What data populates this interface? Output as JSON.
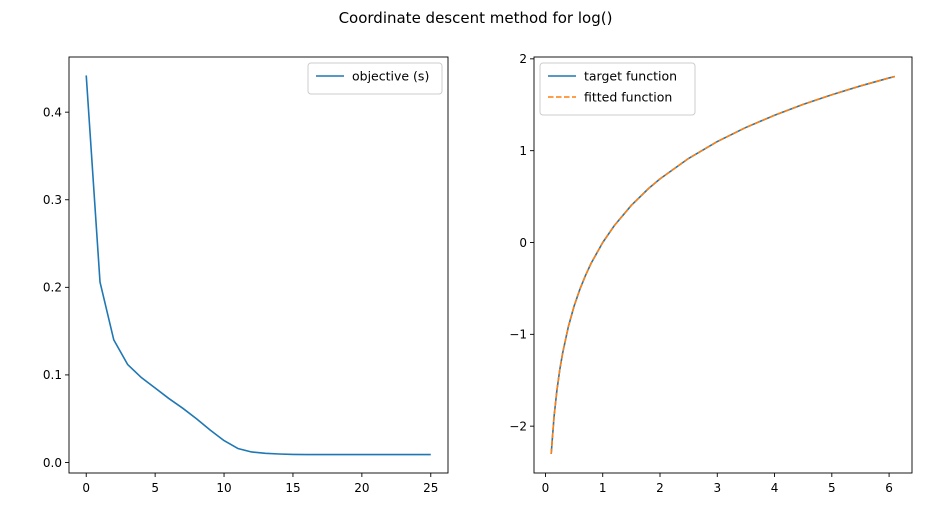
{
  "figure": {
    "title": "Coordinate descent method for log()"
  },
  "chart_data": [
    {
      "type": "line",
      "title": "",
      "xlabel": "",
      "ylabel": "",
      "xlim": [
        -1.25,
        26.25
      ],
      "ylim": [
        -0.012,
        0.463
      ],
      "xticks": [
        0,
        5,
        10,
        15,
        20,
        25
      ],
      "xtick_labels": [
        "0",
        "5",
        "10",
        "15",
        "20",
        "25"
      ],
      "yticks": [
        0.0,
        0.1,
        0.2,
        0.3,
        0.4
      ],
      "ytick_labels": [
        "0.0",
        "0.1",
        "0.2",
        "0.3",
        "0.4"
      ],
      "grid": false,
      "legend_position": "upper right",
      "series": [
        {
          "name": "objective (s)",
          "color": "#1f77b4",
          "style": "solid",
          "x": [
            0,
            1,
            2,
            3,
            4,
            5,
            6,
            7,
            8,
            9,
            10,
            11,
            12,
            13,
            14,
            15,
            16,
            17,
            18,
            19,
            20,
            21,
            22,
            23,
            24,
            25
          ],
          "y": [
            0.442,
            0.206,
            0.14,
            0.112,
            0.097,
            0.085,
            0.073,
            0.062,
            0.05,
            0.037,
            0.025,
            0.016,
            0.012,
            0.0105,
            0.0097,
            0.0092,
            0.009,
            0.009,
            0.009,
            0.009,
            0.009,
            0.009,
            0.009,
            0.009,
            0.009,
            0.009
          ]
        }
      ]
    },
    {
      "type": "line",
      "title": "",
      "xlabel": "",
      "ylabel": "",
      "xlim": [
        -0.2,
        6.4
      ],
      "ylim": [
        -2.51,
        2.02
      ],
      "xticks": [
        0,
        1,
        2,
        3,
        4,
        5,
        6
      ],
      "xtick_labels": [
        "0",
        "1",
        "2",
        "3",
        "4",
        "5",
        "6"
      ],
      "yticks": [
        -2,
        -1,
        0,
        1,
        2
      ],
      "ytick_labels": [
        "−2",
        "−1",
        "0",
        "1",
        "2"
      ],
      "grid": false,
      "legend_position": "upper left",
      "series": [
        {
          "name": "target function",
          "color": "#1f77b4",
          "style": "solid",
          "x": [
            0.1,
            0.15,
            0.2,
            0.25,
            0.3,
            0.4,
            0.5,
            0.6,
            0.7,
            0.8,
            1.0,
            1.2,
            1.5,
            1.8,
            2.0,
            2.5,
            3.0,
            3.5,
            4.0,
            4.5,
            5.0,
            5.5,
            6.0,
            6.1
          ],
          "y": [
            -2.303,
            -1.897,
            -1.609,
            -1.386,
            -1.204,
            -0.916,
            -0.693,
            -0.511,
            -0.357,
            -0.223,
            0.0,
            0.182,
            0.405,
            0.588,
            0.693,
            0.916,
            1.099,
            1.253,
            1.386,
            1.504,
            1.609,
            1.705,
            1.792,
            1.808
          ]
        },
        {
          "name": "fitted function",
          "color": "#ff7f0e",
          "style": "dashed",
          "x": [
            0.1,
            0.15,
            0.2,
            0.25,
            0.3,
            0.4,
            0.5,
            0.6,
            0.7,
            0.8,
            1.0,
            1.2,
            1.5,
            1.8,
            2.0,
            2.5,
            3.0,
            3.5,
            4.0,
            4.5,
            5.0,
            5.5,
            6.0,
            6.1
          ],
          "y": [
            -2.303,
            -1.897,
            -1.609,
            -1.386,
            -1.204,
            -0.916,
            -0.693,
            -0.511,
            -0.357,
            -0.223,
            0.0,
            0.182,
            0.405,
            0.588,
            0.693,
            0.916,
            1.099,
            1.253,
            1.386,
            1.504,
            1.609,
            1.705,
            1.792,
            1.808
          ]
        }
      ]
    }
  ]
}
